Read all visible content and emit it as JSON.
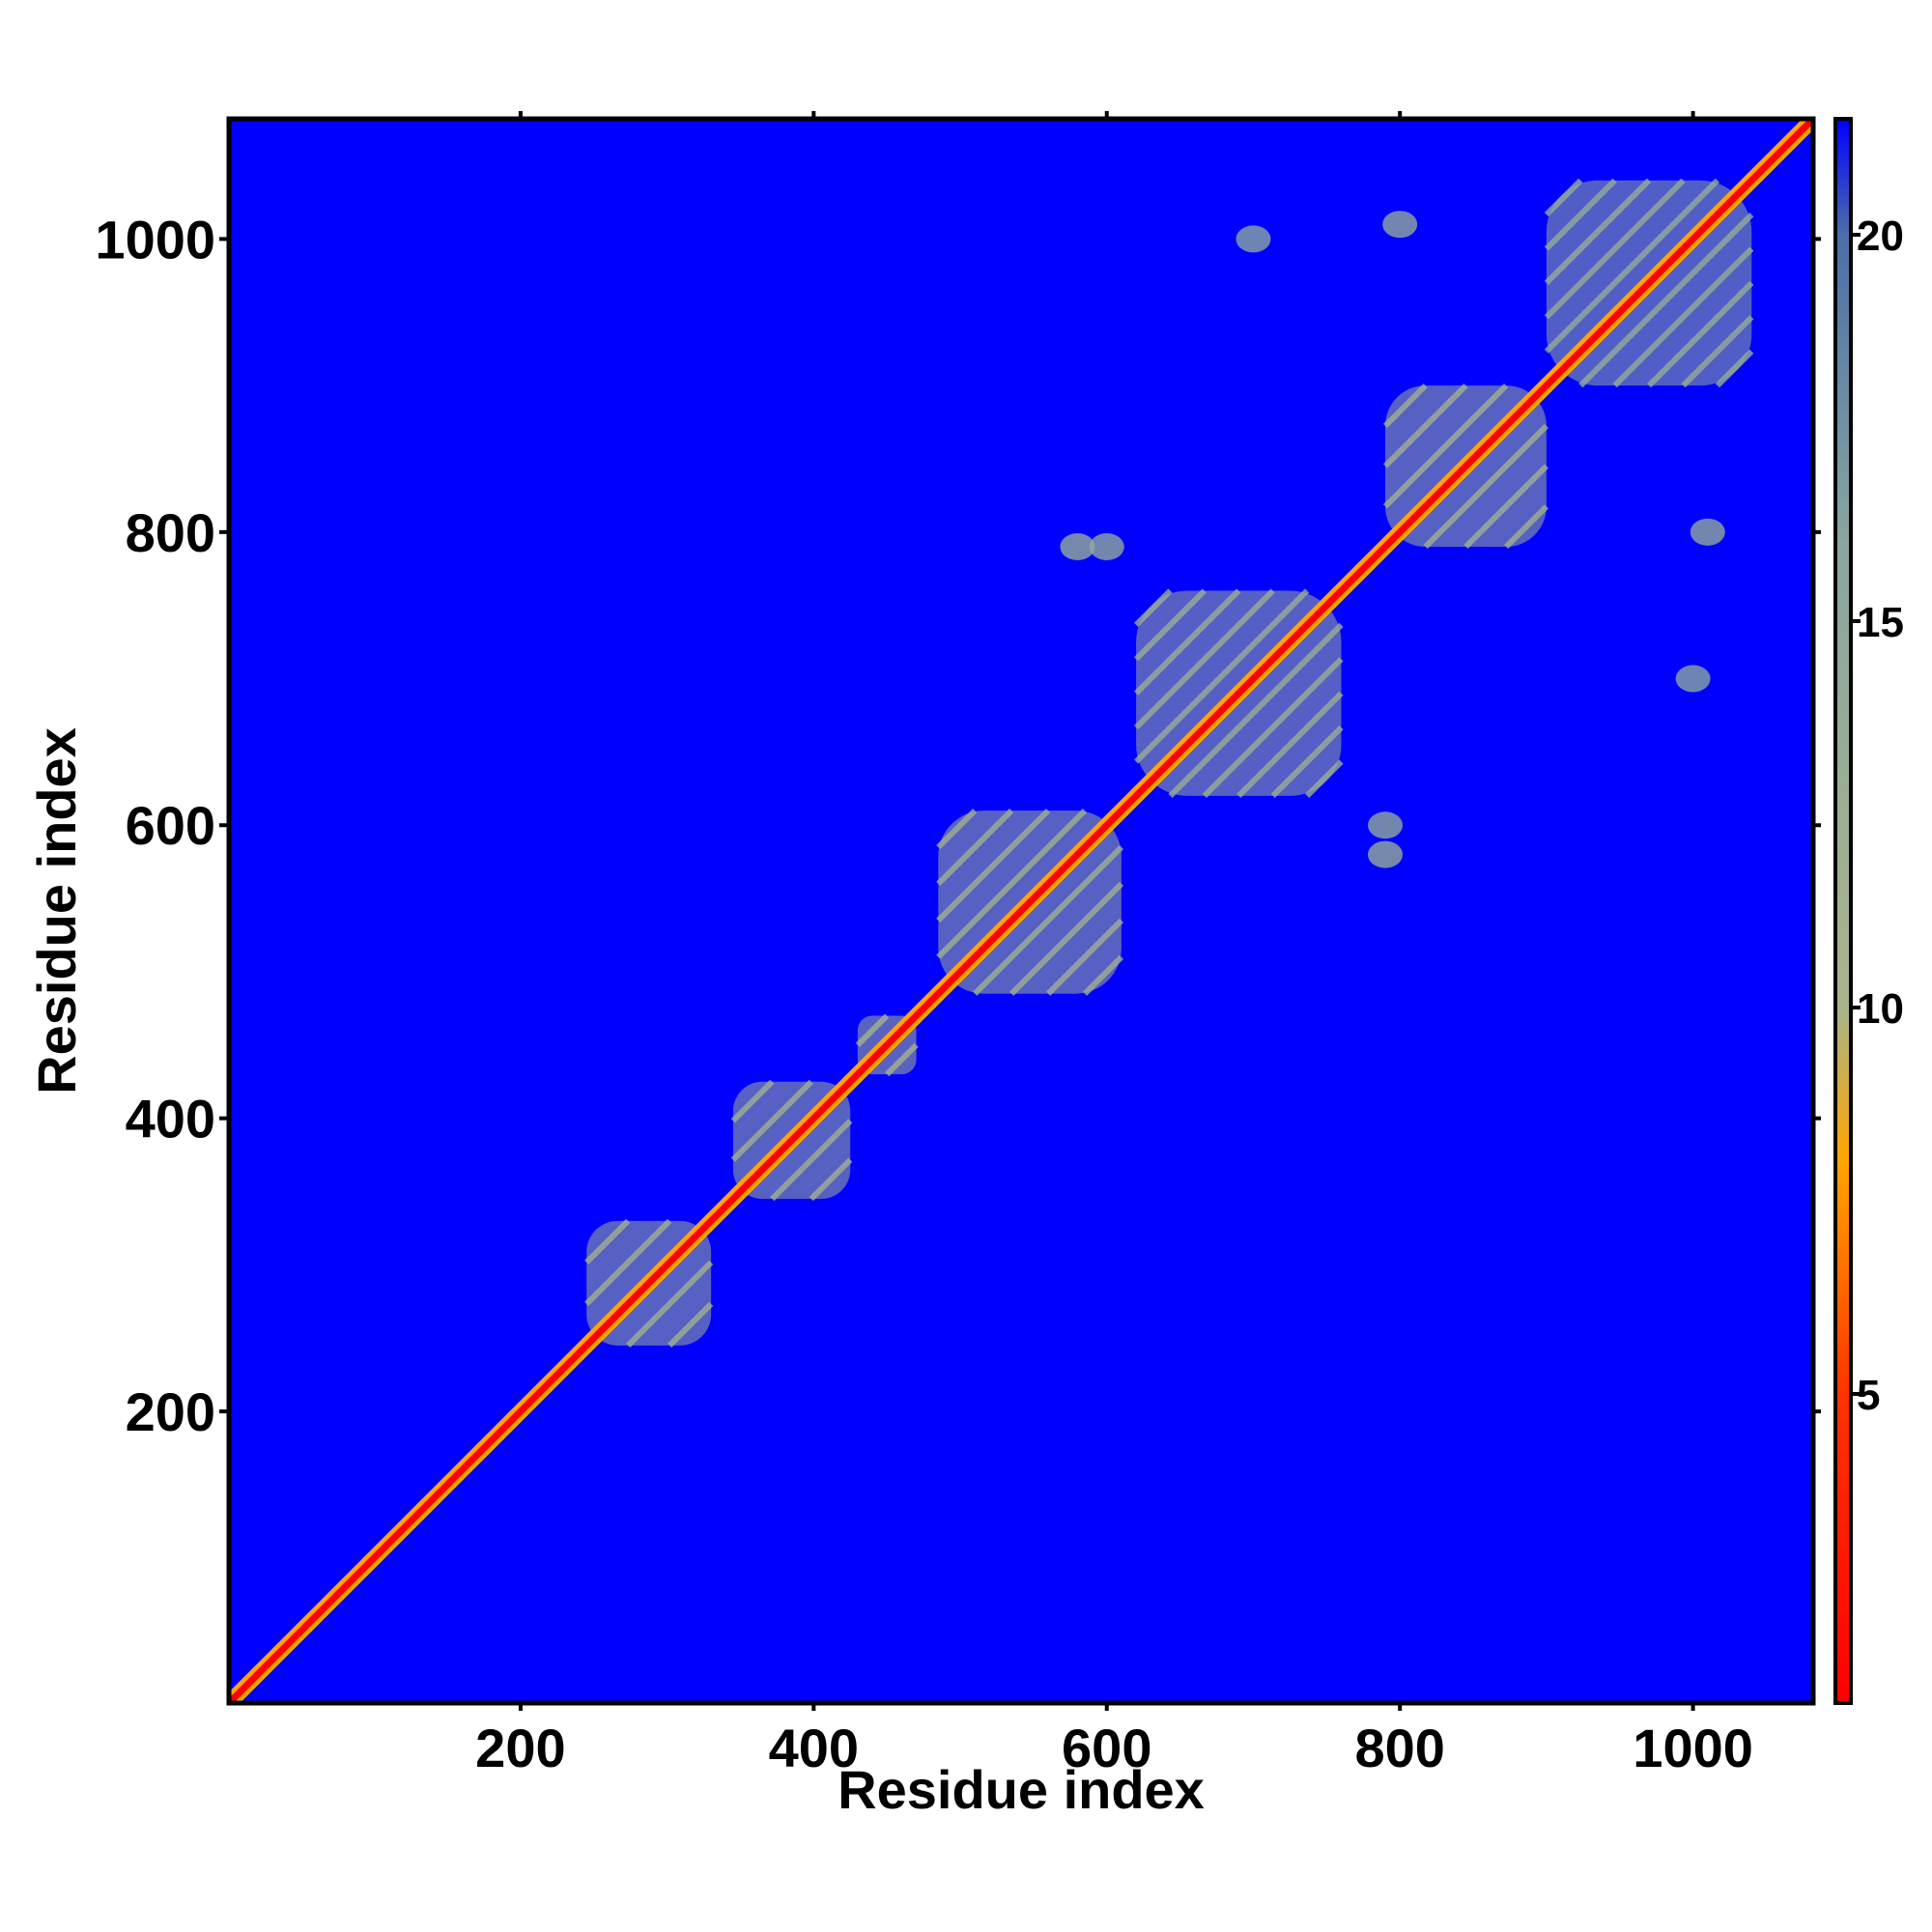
{
  "chart_data": {
    "type": "heatmap",
    "title": "",
    "xlabel": "Residue index",
    "ylabel": "Residue index",
    "xlim": [
      1,
      1082
    ],
    "ylim": [
      1,
      1082
    ],
    "x_ticks": [
      200,
      400,
      600,
      800,
      1000
    ],
    "y_ticks": [
      200,
      400,
      600,
      800,
      1000
    ],
    "x_tick_labels": [
      "200",
      "400",
      "600",
      "800",
      "1000"
    ],
    "y_tick_labels": [
      "200",
      "400",
      "600",
      "800",
      "1000"
    ],
    "colorbar": {
      "range": [
        1,
        21.5
      ],
      "ticks": [
        5,
        10,
        15,
        20
      ],
      "tick_labels": [
        "5",
        "10",
        "15",
        "20"
      ],
      "colors": [
        {
          "value": 1,
          "color": "#ff0000"
        },
        {
          "value": 5,
          "color": "#ff3300"
        },
        {
          "value": 8,
          "color": "#ffa500"
        },
        {
          "value": 10,
          "color": "#a9b48a"
        },
        {
          "value": 16,
          "color": "#8aa6a0"
        },
        {
          "value": 20,
          "color": "#4a6fa8"
        },
        {
          "value": 21.5,
          "color": "#0000ff"
        }
      ]
    },
    "background_value": 21.5,
    "diagonal": {
      "from": 1,
      "to": 1082,
      "value": 1
    },
    "domains": [
      {
        "start": 245,
        "end": 330,
        "contact_value": 12
      },
      {
        "start": 345,
        "end": 425,
        "contact_value": 12
      },
      {
        "start": 430,
        "end": 470,
        "contact_value": 11
      },
      {
        "start": 485,
        "end": 610,
        "contact_value": 12
      },
      {
        "start": 620,
        "end": 760,
        "contact_value": 13
      },
      {
        "start": 790,
        "end": 900,
        "contact_value": 12
      },
      {
        "start": 900,
        "end": 1040,
        "contact_value": 14
      }
    ],
    "off_diagonal_contacts": [
      {
        "x": 600,
        "y": 790,
        "value": 15
      },
      {
        "x": 700,
        "y": 1000,
        "value": 16
      },
      {
        "x": 1010,
        "y": 800,
        "value": 15
      },
      {
        "x": 790,
        "y": 580,
        "value": 14
      }
    ]
  }
}
